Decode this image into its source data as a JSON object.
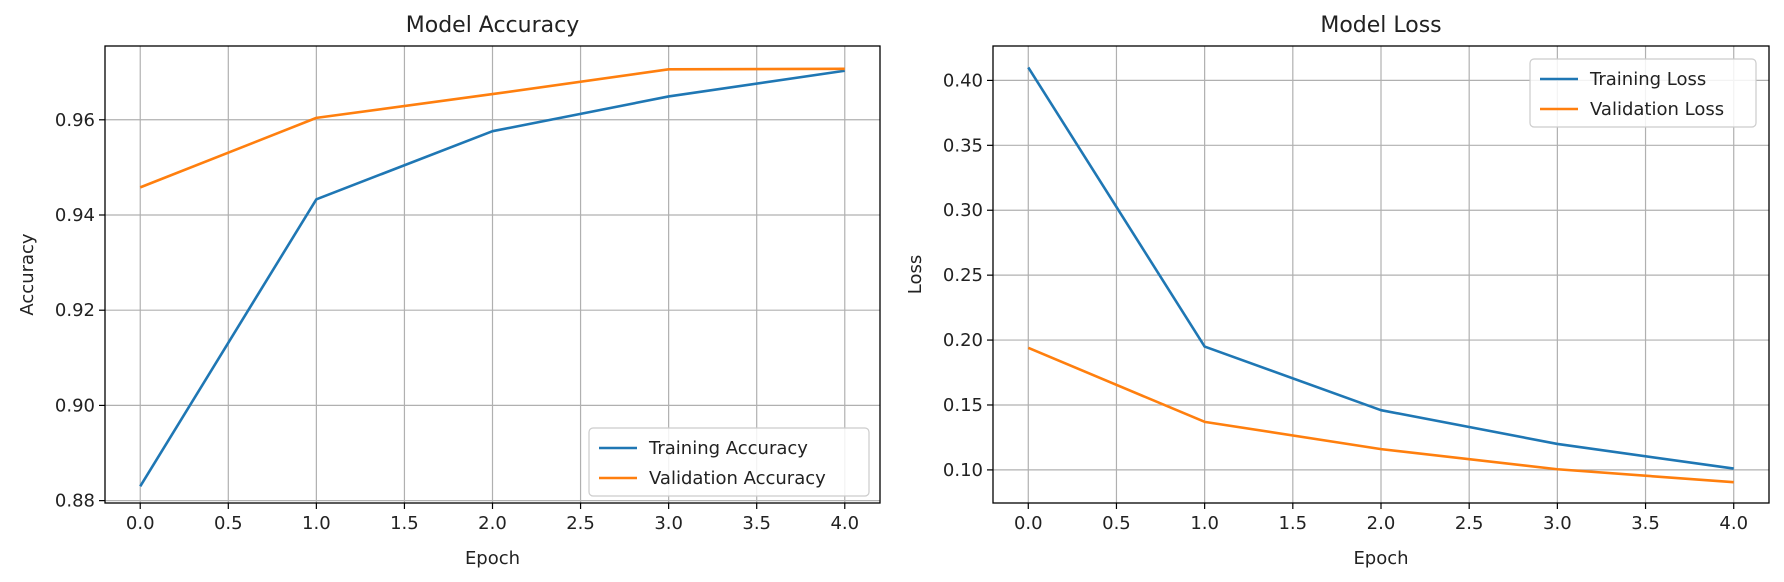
{
  "chart_data": [
    {
      "type": "line",
      "title": "Model Accuracy",
      "xlabel": "Epoch",
      "ylabel": "Accuracy",
      "x": [
        0,
        1,
        2,
        3,
        4
      ],
      "xlim": [
        -0.2,
        4.2
      ],
      "ylim": [
        0.8795,
        0.9755
      ],
      "xticks": [
        0.0,
        0.5,
        1.0,
        1.5,
        2.0,
        2.5,
        3.0,
        3.5,
        4.0
      ],
      "xtick_labels": [
        "0.0",
        "0.5",
        "1.0",
        "1.5",
        "2.0",
        "2.5",
        "3.0",
        "3.5",
        "4.0"
      ],
      "yticks": [
        0.88,
        0.9,
        0.92,
        0.94,
        0.96
      ],
      "ytick_labels": [
        "0.88",
        "0.90",
        "0.92",
        "0.94",
        "0.96"
      ],
      "grid": true,
      "legend_position": "lower-right",
      "series": [
        {
          "name": "Training Accuracy",
          "color": "#1f77b4",
          "values": [
            0.883,
            0.9433,
            0.9576,
            0.9649,
            0.9703
          ]
        },
        {
          "name": "Validation Accuracy",
          "color": "#ff7f0e",
          "values": [
            0.9458,
            0.9604,
            0.9654,
            0.9706,
            0.9707
          ]
        }
      ]
    },
    {
      "type": "line",
      "title": "Model Loss",
      "xlabel": "Epoch",
      "ylabel": "Loss",
      "x": [
        0,
        1,
        2,
        3,
        4
      ],
      "xlim": [
        -0.2,
        4.2
      ],
      "ylim": [
        0.0745,
        0.4265
      ],
      "xticks": [
        0.0,
        0.5,
        1.0,
        1.5,
        2.0,
        2.5,
        3.0,
        3.5,
        4.0
      ],
      "xtick_labels": [
        "0.0",
        "0.5",
        "1.0",
        "1.5",
        "2.0",
        "2.5",
        "3.0",
        "3.5",
        "4.0"
      ],
      "yticks": [
        0.1,
        0.15,
        0.2,
        0.25,
        0.3,
        0.35,
        0.4
      ],
      "ytick_labels": [
        "0.10",
        "0.15",
        "0.20",
        "0.25",
        "0.30",
        "0.35",
        "0.40"
      ],
      "grid": true,
      "legend_position": "upper-right",
      "series": [
        {
          "name": "Training Loss",
          "color": "#1f77b4",
          "values": [
            0.41,
            0.195,
            0.146,
            0.12,
            0.101
          ]
        },
        {
          "name": "Validation Loss",
          "color": "#ff7f0e",
          "values": [
            0.194,
            0.137,
            0.116,
            0.1005,
            0.0905
          ]
        }
      ]
    }
  ]
}
